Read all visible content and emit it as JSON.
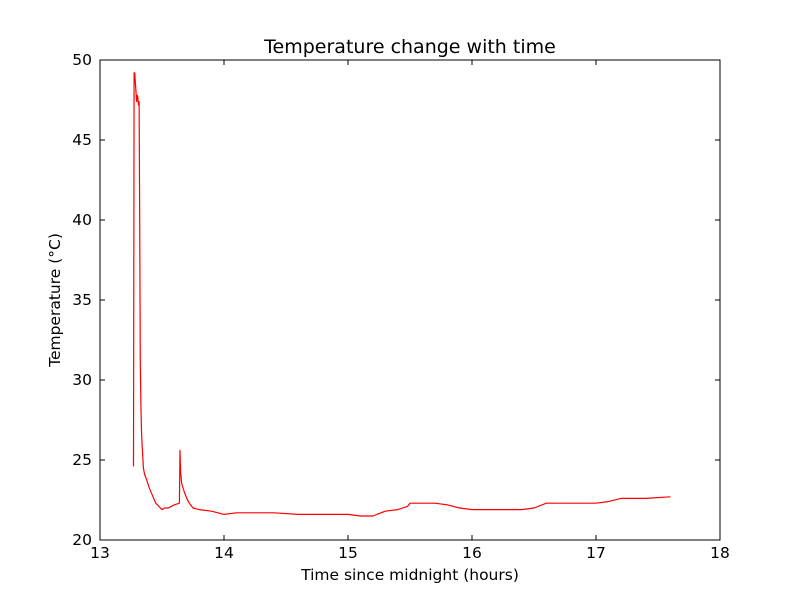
{
  "chart_data": {
    "type": "line",
    "title": "Temperature change with time",
    "xlabel": "Time since midnight (hours)",
    "ylabel": "Temperature (°C)",
    "xlim": [
      13,
      18
    ],
    "ylim": [
      20,
      50
    ],
    "xticks": [
      13,
      14,
      15,
      16,
      17,
      18
    ],
    "yticks": [
      20,
      25,
      30,
      35,
      40,
      45,
      50
    ],
    "grid": false,
    "legend": "none",
    "line_color": "#ff0000",
    "series": [
      {
        "x": [
          13.27,
          13.275,
          13.28,
          13.29,
          13.295,
          13.3,
          13.305,
          13.31,
          13.315,
          13.32,
          13.325,
          13.33,
          13.335,
          13.34,
          13.345,
          13.35,
          13.36,
          13.37,
          13.4,
          13.45,
          13.5,
          13.52,
          13.55,
          13.6,
          13.64,
          13.645,
          13.65,
          13.66,
          13.68,
          13.7,
          13.72,
          13.75,
          13.8,
          13.9,
          14.0,
          14.1,
          14.2,
          14.4,
          14.6,
          14.8,
          15.0,
          15.1,
          15.2,
          15.3,
          15.4,
          15.48,
          15.5,
          15.7,
          15.8,
          15.9,
          16.0,
          16.2,
          16.4,
          16.5,
          16.6,
          16.8,
          17.0,
          17.1,
          17.2,
          17.4,
          17.6
        ],
        "y": [
          24.6,
          49.2,
          49.2,
          48.0,
          47.4,
          47.8,
          47.7,
          47.2,
          47.4,
          40.0,
          31.0,
          28.5,
          26.8,
          25.8,
          25.2,
          24.5,
          24.1,
          23.9,
          23.2,
          22.3,
          21.9,
          22.0,
          22.0,
          22.2,
          22.3,
          25.6,
          24.2,
          23.5,
          23.0,
          22.6,
          22.3,
          22.0,
          21.9,
          21.8,
          21.6,
          21.7,
          21.7,
          21.7,
          21.6,
          21.6,
          21.6,
          21.5,
          21.5,
          21.8,
          21.9,
          22.1,
          22.3,
          22.3,
          22.2,
          22.0,
          21.9,
          21.9,
          21.9,
          22.0,
          22.3,
          22.3,
          22.3,
          22.4,
          22.6,
          22.6,
          22.7
        ]
      }
    ]
  }
}
